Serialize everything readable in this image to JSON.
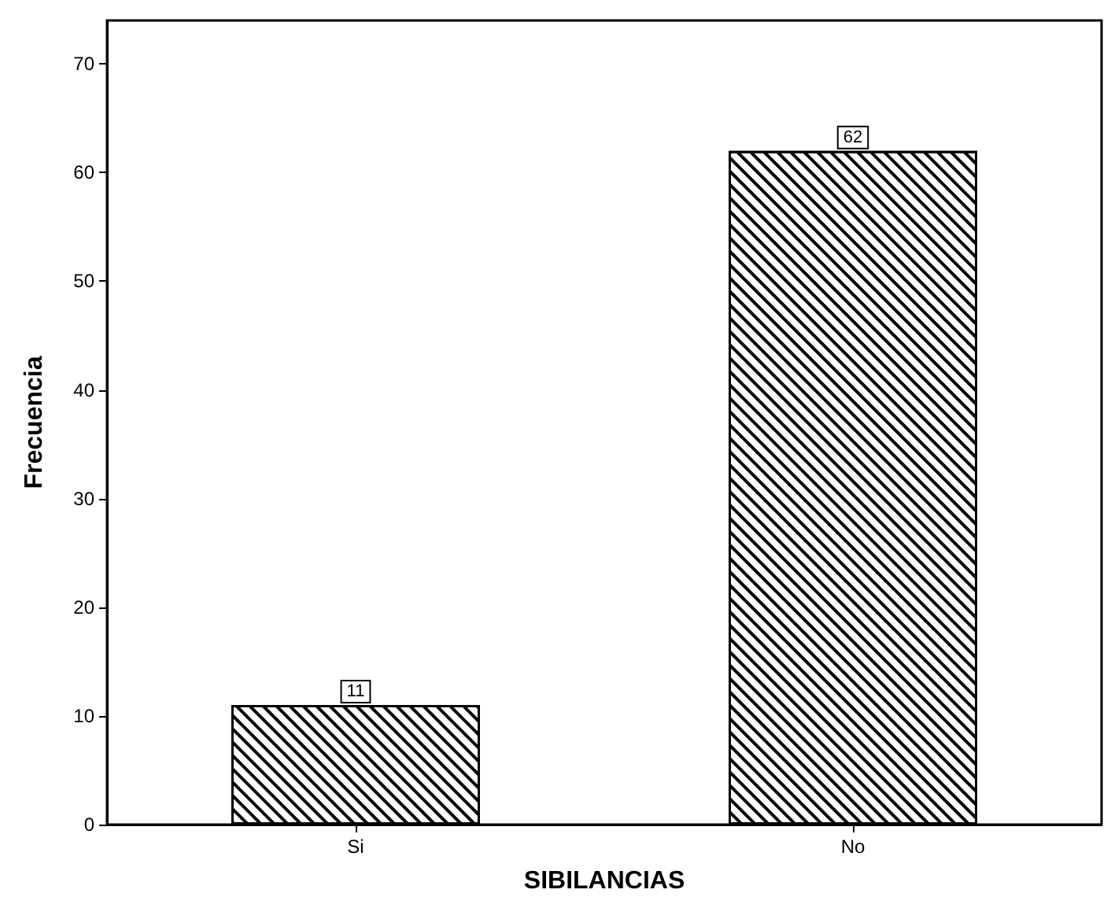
{
  "chart_data": {
    "type": "bar",
    "xlabel": "SIBILANCIAS",
    "ylabel": "Frecuencia",
    "categories": [
      "Si",
      "No"
    ],
    "values": [
      11,
      62
    ],
    "color": "#000000",
    "ylim": [
      0,
      74
    ],
    "yticks": [
      0,
      10,
      20,
      30,
      40,
      50,
      60,
      70
    ],
    "data_labels": true,
    "grid": false
  }
}
